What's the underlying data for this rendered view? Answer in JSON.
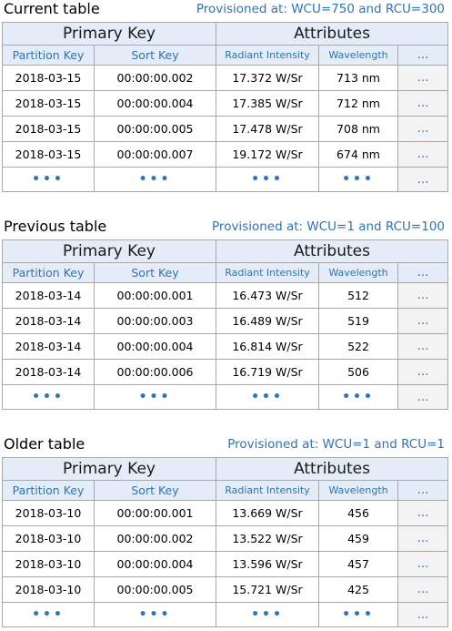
{
  "headers": {
    "primary_key": "Primary Key",
    "attributes": "Attributes",
    "partition_key": "Partition Key",
    "sort_key": "Sort Key",
    "radiant_intensity": "Radiant Intensity",
    "wavelength": "Wavelength",
    "ellipsis": "…",
    "dots": "•••"
  },
  "tables": [
    {
      "caption": "Current table",
      "provisioned": "Provisioned at:  WCU=750 and RCU=300",
      "rows": [
        [
          "2018-03-15",
          "00:00:00.002",
          "17.372 W/Sr",
          "713 nm"
        ],
        [
          "2018-03-15",
          "00:00:00.004",
          "17.385 W/Sr",
          "712 nm"
        ],
        [
          "2018-03-15",
          "00:00:00.005",
          "17.478 W/Sr",
          "708 nm"
        ],
        [
          "2018-03-15",
          "00:00:00.007",
          "19.172 W/Sr",
          "674 nm"
        ]
      ]
    },
    {
      "caption": "Previous table",
      "provisioned": "Provisioned at: WCU=1 and RCU=100",
      "rows": [
        [
          "2018-03-14",
          "00:00:00.001",
          "16.473 W/Sr",
          "512"
        ],
        [
          "2018-03-14",
          "00:00:00.003",
          "16.489 W/Sr",
          "519"
        ],
        [
          "2018-03-14",
          "00:00:00.004",
          "16.814 W/Sr",
          "522"
        ],
        [
          "2018-03-14",
          "00:00:00.006",
          "16.719 W/Sr",
          "506"
        ]
      ]
    },
    {
      "caption": "Older table",
      "provisioned": "Provisioned at: WCU=1 and RCU=1",
      "rows": [
        [
          "2018-03-10",
          "00:00:00.001",
          "13.669 W/Sr",
          "456"
        ],
        [
          "2018-03-10",
          "00:00:00.002",
          "13.522 W/Sr",
          "459"
        ],
        [
          "2018-03-10",
          "00:00:00.004",
          "13.596 W/Sr",
          "457"
        ],
        [
          "2018-03-10",
          "00:00:00.005",
          "15.721 W/Sr",
          "425"
        ]
      ]
    }
  ]
}
